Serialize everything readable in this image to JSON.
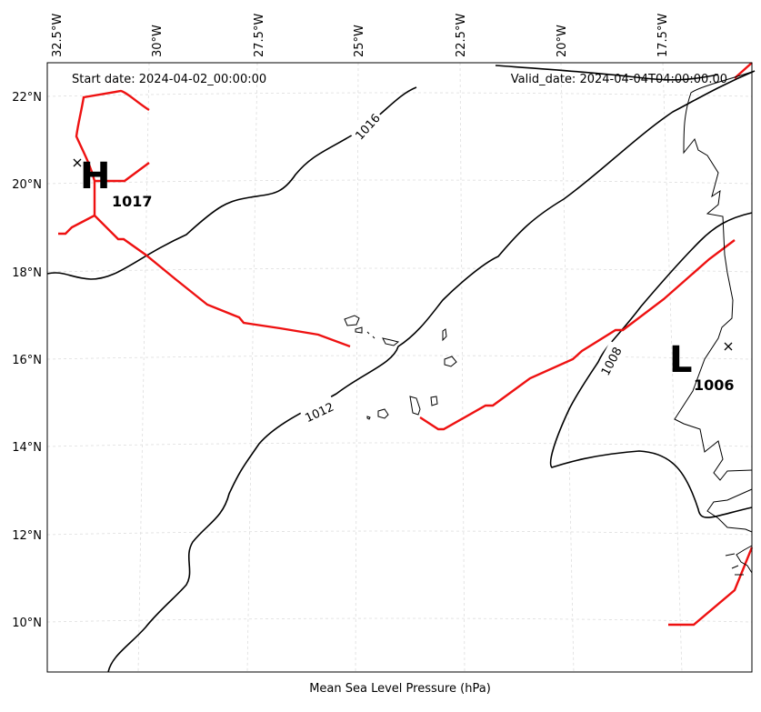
{
  "header": {
    "start_date": "Start date: 2024-04-02_00:00:00",
    "valid_date": "Valid_date: 2024-04-04T04:00:00.00"
  },
  "axis": {
    "xlabel": "Mean Sea Level Pressure (hPa)",
    "lon_labels": [
      "32.5°W",
      "30°W",
      "27.5°W",
      "25°W",
      "22.5°W",
      "20°W",
      "17.5°W"
    ],
    "lat_labels": [
      "22°N",
      "20°N",
      "18°N",
      "16°N",
      "14°N",
      "12°N",
      "10°N"
    ]
  },
  "isobars": [
    {
      "value": "1016"
    },
    {
      "value": "1012"
    },
    {
      "value": "1008"
    }
  ],
  "centers": {
    "high": {
      "letter": "H",
      "value": "1017"
    },
    "low": {
      "letter": "L",
      "value": "1006"
    }
  },
  "colors": {
    "isobar": "#000000",
    "front": "#ee1111",
    "grid": "#dddddd"
  }
}
